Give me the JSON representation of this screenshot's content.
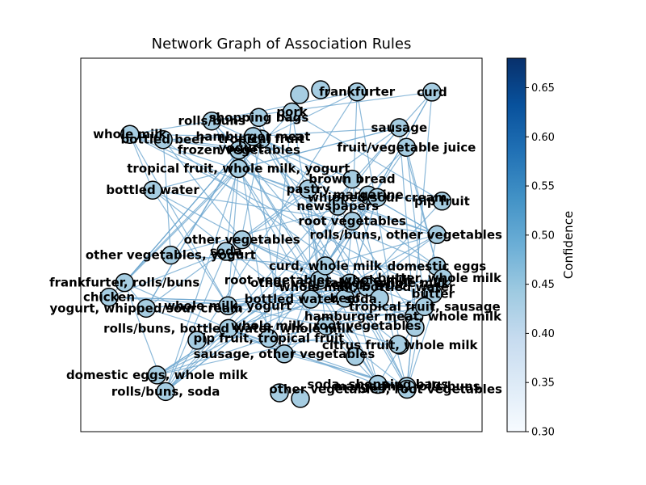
{
  "chart_data": {
    "type": "network",
    "title": "Network Graph of Association Rules",
    "colorbar": {
      "label": "Confidence",
      "min": 0.3,
      "max": 0.68,
      "ticks": [
        "0.30",
        "0.35",
        "0.40",
        "0.45",
        "0.50",
        "0.55",
        "0.60",
        "0.65"
      ],
      "colormap": "Blues"
    },
    "node_color": "#a6cde2",
    "edge_color": "#6fa8d0",
    "node_labels": [
      "chicken",
      "rolls/buns",
      "margarine",
      "soda",
      "whipped/sour cream",
      "root vegetables",
      "sausage",
      "other vegetables",
      "frankfurter",
      "brown bread",
      "domestic eggs",
      "bottled water",
      "rolls/buns, other vegetables",
      "newspapers",
      "butter",
      "yogurt",
      "fruit/vegetable juice",
      "bottled beer",
      "tropical fruit",
      "pip fruit",
      "citrus fruit",
      "whole milk",
      "pastry",
      "shopping bags",
      "curd",
      "frozen vegetables",
      "beef",
      "pork",
      "hamburger meat",
      "tropical fruit, whole milk, yogurt",
      "rolls/buns, bottled water, whole milk",
      "root vegetables, whole milk",
      "hamburger meat, whole milk",
      "citrus fruit, whole milk",
      "whole milk, root vegetables",
      "sausage, other vegetables",
      "tropical fruit, sausage",
      "other vegetables, whole milk",
      "bottled water, soda",
      "whole milk, yogurt",
      "soda, shopping bags",
      "domestic eggs, whole milk",
      "yogurt, whipped/sour cream",
      "other vegetables, yogurt",
      "butter, whole milk",
      "curd, whole milk",
      "pip fruit, tropical fruit",
      "rolls/buns, soda",
      "margarine, rolls/buns",
      "other vegetables, root vegetables",
      "whole milk, bottled water",
      "frankfurter, rolls/buns"
    ]
  }
}
